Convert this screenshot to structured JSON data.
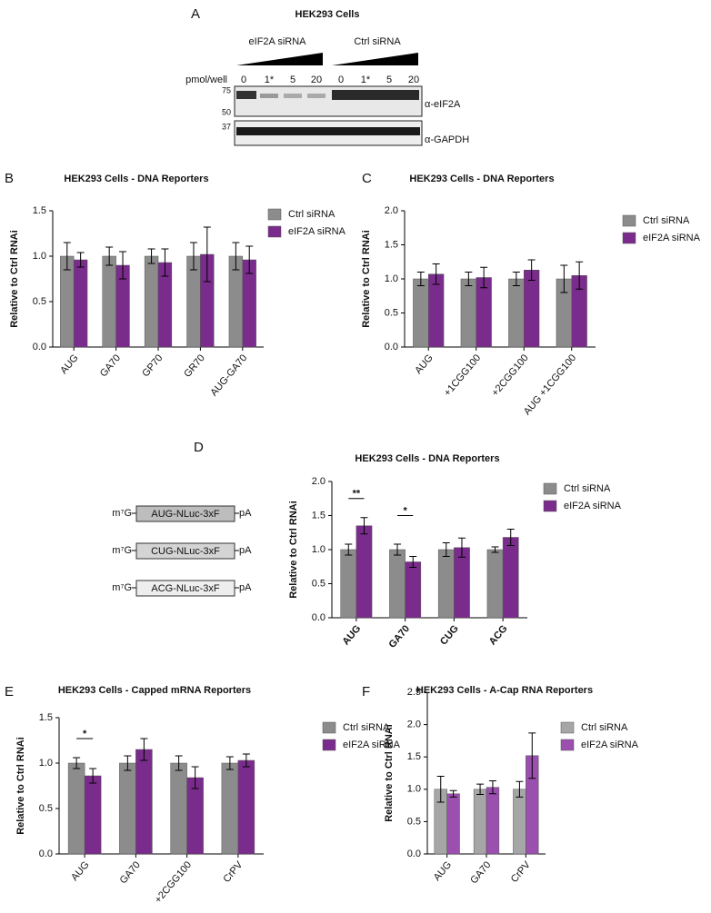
{
  "panel_labels": [
    "A",
    "B",
    "C",
    "D",
    "E",
    "F"
  ],
  "blot": {
    "title": "HEK293 Cells",
    "groups": [
      "eIF2A siRNA",
      "Ctrl siRNA"
    ],
    "dose_label": "pmol/well",
    "lanes": [
      "0",
      "1*",
      "5",
      "20",
      "0",
      "1*",
      "5",
      "20"
    ],
    "markers": [
      75,
      50,
      37
    ],
    "antibodies": [
      "α-eIF2A",
      "α-GAPDH"
    ]
  },
  "constructs": [
    {
      "cap": "m⁷G",
      "label": "AUG-NLuc-3xF",
      "tail": "pA"
    },
    {
      "cap": "m⁷G",
      "label": "CUG-NLuc-3xF",
      "tail": "pA"
    },
    {
      "cap": "m⁷G",
      "label": "ACG-NLuc-3xF",
      "tail": "pA"
    }
  ],
  "chart_data": [
    {
      "type": "bar",
      "title": "HEK293 Cells - DNA Reporters",
      "y_label": "Relative to Ctrl RNAi",
      "categories": [
        "AUG",
        "GA70",
        "GP70",
        "GR70",
        "AUG-GA70"
      ],
      "series": [
        {
          "name": "Ctrl siRNA",
          "color": "#8c8c8c",
          "values": [
            1.0,
            1.0,
            1.0,
            1.0,
            1.0
          ],
          "errors": [
            0.15,
            0.1,
            0.08,
            0.15,
            0.15
          ]
        },
        {
          "name": "eIF2A siRNA",
          "color": "#7a2c8c",
          "values": [
            0.96,
            0.9,
            0.93,
            1.02,
            0.96
          ],
          "errors": [
            0.08,
            0.15,
            0.15,
            0.3,
            0.15
          ]
        }
      ],
      "ylim": [
        0,
        1.5
      ],
      "yticks": [
        {
          "value": 0,
          "label": "0.0"
        },
        0.5,
        {
          "value": 1,
          "label": "1.0"
        },
        1.5
      ]
    },
    {
      "type": "bar",
      "title": "HEK293 Cells - DNA Reporters",
      "y_label": "Relative to Ctrl RNAi",
      "categories": [
        "AUG",
        "+1CGG100",
        "+2CGG100",
        "AUG +1CGG100"
      ],
      "series": [
        {
          "name": "Ctrl siRNA",
          "color": "#8c8c8c",
          "values": [
            1.0,
            1.0,
            1.0,
            1.0
          ],
          "errors": [
            0.1,
            0.1,
            0.1,
            0.2
          ]
        },
        {
          "name": "eIF2A siRNA",
          "color": "#7a2c8c",
          "values": [
            1.07,
            1.02,
            1.13,
            1.05
          ],
          "errors": [
            0.15,
            0.15,
            0.15,
            0.2
          ]
        }
      ],
      "ylim": [
        0,
        2
      ],
      "yticks": [
        {
          "value": 0,
          "label": "0.0"
        },
        0.5,
        {
          "value": 1,
          "label": "1.0"
        },
        1.5,
        {
          "value": 2,
          "label": "2.0"
        }
      ]
    },
    {
      "type": "bar",
      "title": "HEK293 Cells - DNA Reporters",
      "y_label": "Relative to Ctrl RNAi",
      "x_label_bold": true,
      "categories": [
        "AUG",
        "GA70",
        "CUG",
        "ACG"
      ],
      "series": [
        {
          "name": "Ctrl siRNA",
          "color": "#8c8c8c",
          "values": [
            1.0,
            1.0,
            1.0,
            1.0
          ],
          "errors": [
            0.08,
            0.08,
            0.1,
            0.04
          ]
        },
        {
          "name": "eIF2A siRNA",
          "color": "#7a2c8c",
          "values": [
            1.35,
            0.82,
            1.03,
            1.18
          ],
          "errors": [
            0.12,
            0.08,
            0.14,
            0.12
          ]
        }
      ],
      "ylim": [
        0,
        2
      ],
      "yticks": [
        {
          "value": 0,
          "label": "0.0"
        },
        0.5,
        {
          "value": 1,
          "label": "1.0"
        },
        1.5,
        {
          "value": 2,
          "label": "2.0"
        }
      ],
      "annotations": [
        {
          "text": "**",
          "category": "AUG",
          "y": 1.75
        },
        {
          "text": "*",
          "category": "GA70",
          "y": 1.5
        }
      ]
    },
    {
      "type": "bar",
      "title": "HEK293 Cells - Capped mRNA Reporters",
      "y_label": "Relative to Ctrl RNAi",
      "categories": [
        "AUG",
        "GA70",
        "+2CGG100",
        "CrPV"
      ],
      "series": [
        {
          "name": "Ctrl siRNA",
          "color": "#8c8c8c",
          "values": [
            1.0,
            1.0,
            1.0,
            1.0
          ],
          "errors": [
            0.06,
            0.08,
            0.08,
            0.07
          ]
        },
        {
          "name": "eIF2A siRNA",
          "color": "#7a2c8c",
          "values": [
            0.86,
            1.15,
            0.84,
            1.03
          ],
          "errors": [
            0.08,
            0.12,
            0.12,
            0.07
          ]
        }
      ],
      "ylim": [
        0,
        1.5
      ],
      "yticks": [
        {
          "value": 0,
          "label": "0.0"
        },
        0.5,
        {
          "value": 1,
          "label": "1.0"
        },
        1.5
      ],
      "annotations": [
        {
          "text": "*",
          "category": "AUG",
          "y": 1.27
        }
      ]
    },
    {
      "type": "bar",
      "title": "HEK293 Cells - A-Cap RNA Reporters",
      "y_label": "Relative to Ctrl RNAi",
      "categories": [
        "AUG",
        "GA70",
        "CrPV"
      ],
      "series": [
        {
          "name": "Ctrl siRNA",
          "color": "#a6a6a6",
          "values": [
            1.0,
            1.0,
            1.0
          ],
          "errors": [
            0.2,
            0.08,
            0.12
          ]
        },
        {
          "name": "eIF2A siRNA",
          "color": "#9b4fae",
          "values": [
            0.93,
            1.03,
            1.52
          ],
          "errors": [
            0.05,
            0.1,
            0.35
          ]
        }
      ],
      "ylim": [
        0,
        2.5
      ],
      "yticks": [
        {
          "value": 0,
          "label": "0.0"
        },
        0.5,
        {
          "value": 1,
          "label": "1.0"
        },
        1.5,
        {
          "value": 2,
          "label": "2.0"
        },
        2.5
      ]
    }
  ]
}
